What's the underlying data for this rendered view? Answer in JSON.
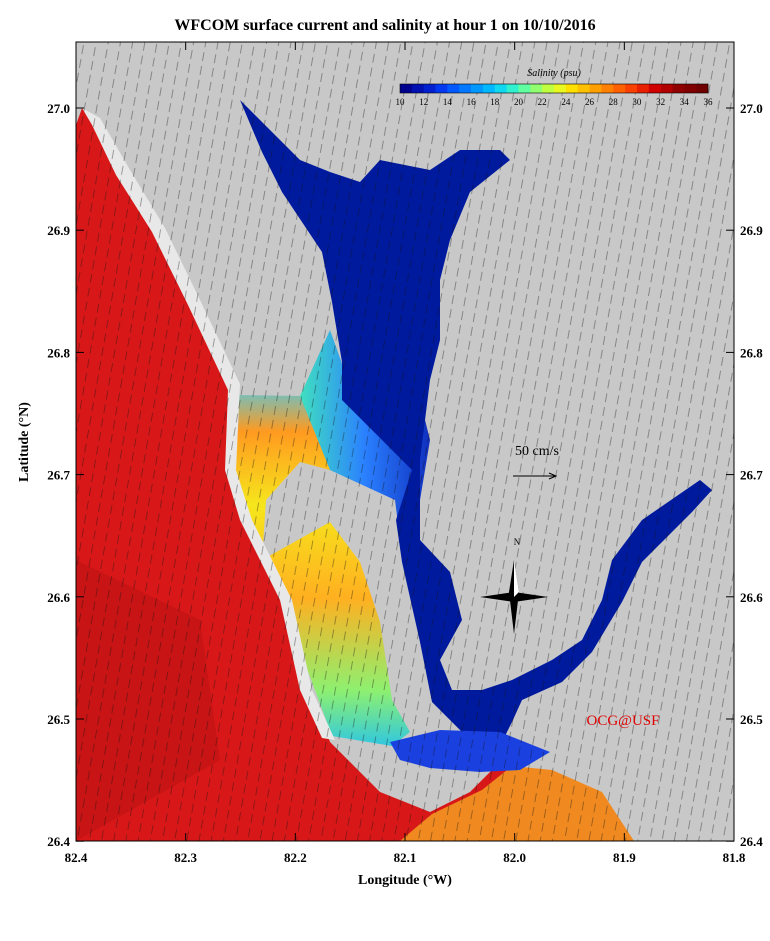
{
  "title": "WFCOM surface current and salinity at hour 1 on 10/10/2016",
  "x_axis": {
    "label": "Longitude (°W)",
    "ticks": [
      "82.4",
      "82.3",
      "82.2",
      "82.1",
      "82.0",
      "81.9",
      "81.8"
    ]
  },
  "y_axis": {
    "label": "Latitude (°N)",
    "ticks": [
      "27.0",
      "26.9",
      "26.8",
      "26.7",
      "26.6",
      "26.5",
      "26.4"
    ]
  },
  "colorbar": {
    "label": "Salinity (psu)",
    "ticks": [
      "10",
      "12",
      "14",
      "16",
      "18",
      "20",
      "22",
      "24",
      "26",
      "28",
      "30",
      "32",
      "34",
      "36"
    ]
  },
  "scale_label": "50 cm/s",
  "compass_label": "N",
  "credit": "OCG@USF"
}
